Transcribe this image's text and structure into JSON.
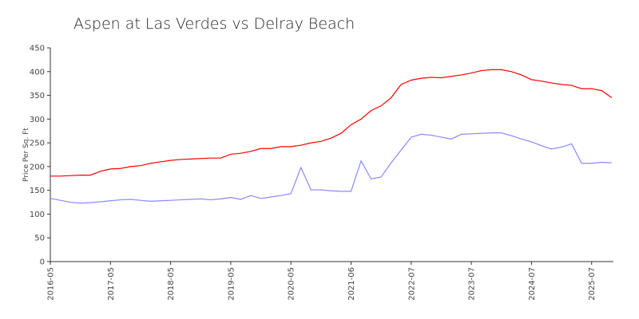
{
  "chart_data": {
    "type": "line",
    "title": "Aspen at Las Verdes vs Delray Beach",
    "y_label": "Price Per Sq. Ft",
    "categories": [
      "2016-05",
      null,
      null,
      null,
      null,
      null,
      "2017-05",
      null,
      null,
      null,
      null,
      null,
      "2018-05",
      null,
      null,
      null,
      null,
      null,
      "2019-05",
      null,
      null,
      null,
      null,
      null,
      "2020-05",
      null,
      null,
      null,
      null,
      null,
      "2021-06",
      null,
      null,
      null,
      null,
      null,
      "2022-07",
      null,
      null,
      null,
      null,
      null,
      "2023-07",
      null,
      null,
      null,
      null,
      null,
      "2024-07",
      null,
      null,
      null,
      null,
      null,
      "2025-07",
      null,
      null
    ],
    "series": [
      {
        "color": "#ff0000",
        "values": [
          180,
          180,
          181,
          182,
          182,
          190,
          195,
          196,
          200,
          202,
          207,
          210,
          213,
          215,
          216,
          217,
          218,
          218,
          226,
          228,
          232,
          238,
          238,
          242,
          242,
          245,
          250,
          253,
          260,
          270,
          288,
          300,
          318,
          328,
          345,
          373,
          382,
          386,
          388,
          387,
          390,
          393,
          397,
          402,
          404,
          404,
          400,
          393,
          383,
          380,
          376,
          373,
          371,
          364,
          364,
          360,
          345
        ]
      },
      {
        "color": "#8888ff",
        "values": [
          133,
          129,
          125,
          123,
          124,
          126,
          128,
          130,
          131,
          129,
          127,
          128,
          129,
          130,
          131,
          132,
          130,
          132,
          135,
          131,
          139,
          133,
          136,
          139,
          143,
          198,
          151,
          151,
          149,
          148,
          148,
          212,
          174,
          178,
          208,
          235,
          262,
          268,
          266,
          262,
          258,
          268,
          269,
          270,
          271,
          271,
          265,
          258,
          252,
          244,
          237,
          241,
          248,
          207,
          207,
          209,
          208
        ]
      }
    ],
    "ylim": [
      0,
      450
    ],
    "yticks": [
      0,
      50,
      100,
      150,
      200,
      250,
      300,
      350,
      400,
      450
    ]
  }
}
